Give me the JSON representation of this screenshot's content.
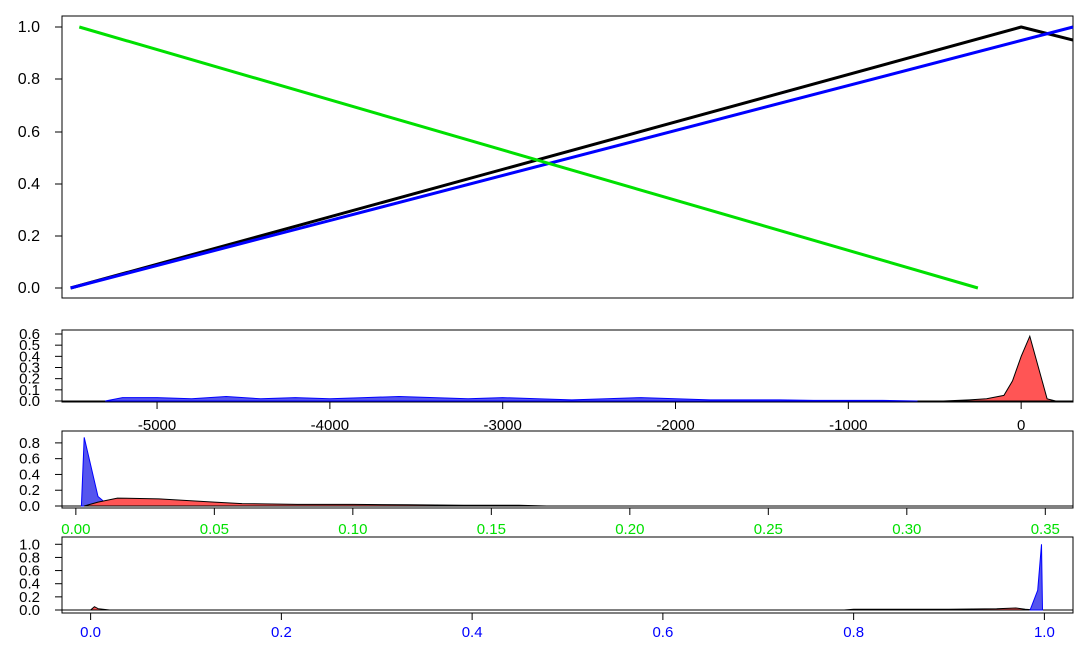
{
  "chart_data": [
    {
      "type": "line",
      "title": "",
      "xlabel": "",
      "ylabel": "",
      "xlim": [
        -5550,
        300
      ],
      "ylim": [
        0,
        1
      ],
      "grid": false,
      "y_ticks": [
        "0.0",
        "0.2",
        "0.4",
        "0.6",
        "0.8",
        "1.0"
      ],
      "series": [
        {
          "color": "#000000",
          "x": [
            -5500,
            0,
            300
          ],
          "y": [
            0.0,
            1.0,
            0.95
          ]
        },
        {
          "color": "#0000ff",
          "x": [
            -5500,
            300
          ],
          "y": [
            0.0,
            1.0
          ]
        },
        {
          "color": "#00e000",
          "x": [
            -5450,
            -250
          ],
          "y": [
            1.0,
            0.0
          ]
        }
      ]
    },
    {
      "type": "area",
      "title": "",
      "xlim": [
        -5550,
        300
      ],
      "ylim": [
        0,
        0.6
      ],
      "y_ticks": [
        "0.0",
        "0.1",
        "0.2",
        "0.3",
        "0.4",
        "0.5",
        "0.6"
      ],
      "x_ticks": [
        "-5000",
        "-4000",
        "-3000",
        "-2000",
        "-1000",
        "0"
      ],
      "x_tick_color": "#000000",
      "series": [
        {
          "color": "#0000ff",
          "fill": "#5555ee",
          "x": [
            -5300,
            -5200,
            -5000,
            -4800,
            -4600,
            -4400,
            -4200,
            -4000,
            -3800,
            -3600,
            -3400,
            -3200,
            -3000,
            -2800,
            -2600,
            -2400,
            -2200,
            -2000,
            -1800,
            -1600,
            -1400,
            -1200,
            -1000,
            -800,
            -600
          ],
          "y": [
            0.0,
            0.03,
            0.03,
            0.02,
            0.04,
            0.02,
            0.03,
            0.02,
            0.03,
            0.04,
            0.03,
            0.02,
            0.03,
            0.02,
            0.01,
            0.02,
            0.03,
            0.02,
            0.01,
            0.01,
            0.01,
            0.005,
            0.005,
            0.005,
            0.0
          ]
        },
        {
          "color": "#000000",
          "fill": "#ff5555",
          "x": [
            -450,
            -300,
            -200,
            -100,
            -50,
            0,
            50,
            150,
            200
          ],
          "y": [
            0.0,
            0.01,
            0.02,
            0.05,
            0.18,
            0.4,
            0.58,
            0.02,
            0.0
          ]
        }
      ]
    },
    {
      "type": "area",
      "title": "",
      "xlim": [
        -0.005,
        0.36
      ],
      "ylim": [
        0,
        0.9
      ],
      "y_ticks": [
        "0.0",
        "0.2",
        "0.4",
        "0.6",
        "0.8"
      ],
      "x_ticks": [
        "0.00",
        "0.05",
        "0.10",
        "0.15",
        "0.20",
        "0.25",
        "0.30",
        "0.35"
      ],
      "x_tick_color": "#00e000",
      "series": [
        {
          "color": "#0000ff",
          "fill": "#5555ee",
          "x": [
            0.002,
            0.003,
            0.008,
            0.012
          ],
          "y": [
            0.0,
            0.87,
            0.12,
            0.0
          ]
        },
        {
          "color": "#000000",
          "fill": "#ff5555",
          "x": [
            0.003,
            0.008,
            0.015,
            0.03,
            0.05,
            0.06,
            0.08,
            0.1,
            0.12,
            0.14,
            0.16,
            0.17
          ],
          "y": [
            0.0,
            0.05,
            0.1,
            0.09,
            0.05,
            0.03,
            0.02,
            0.02,
            0.015,
            0.01,
            0.01,
            0.0
          ]
        }
      ]
    },
    {
      "type": "area",
      "title": "",
      "xlim": [
        -0.03,
        1.03
      ],
      "ylim": [
        0,
        1.05
      ],
      "y_ticks": [
        "0.0",
        "0.2",
        "0.4",
        "0.6",
        "0.8",
        "1.0"
      ],
      "x_ticks": [
        "0.0",
        "0.2",
        "0.4",
        "0.6",
        "0.8",
        "1.0"
      ],
      "x_tick_color": "#0000ff",
      "series": [
        {
          "color": "#000000",
          "fill": "#ff5555",
          "x": [
            0.0,
            0.004,
            0.008,
            0.02,
            0.79,
            0.8,
            0.9,
            0.95,
            0.97,
            0.98,
            0.99
          ],
          "y": [
            0.0,
            0.05,
            0.02,
            0.0,
            0.0,
            0.01,
            0.01,
            0.02,
            0.03,
            0.01,
            0.0
          ]
        },
        {
          "color": "#0000ff",
          "fill": "#5555ee",
          "x": [
            0.985,
            0.993,
            0.997,
            0.998
          ],
          "y": [
            0.0,
            0.3,
            1.0,
            0.0
          ]
        }
      ]
    }
  ]
}
